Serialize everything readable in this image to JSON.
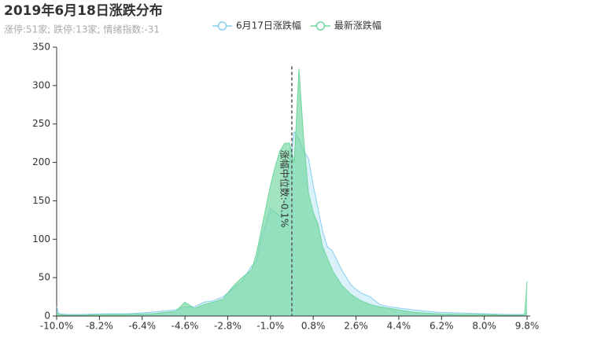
{
  "chart_data": {
    "type": "area",
    "title": "2019年6月18日涨跌分布",
    "subtitle": "涨停:51家; 跌停:13家; 情绪指数:-31",
    "x": [
      -10.0,
      -9.9,
      -9.6,
      -9.0,
      -8.0,
      -7.0,
      -6.0,
      -5.0,
      -4.6,
      -4.2,
      -3.8,
      -3.4,
      -3.0,
      -2.6,
      -2.2,
      -1.8,
      -1.6,
      -1.4,
      -1.2,
      -1.0,
      -0.8,
      -0.6,
      -0.4,
      -0.2,
      0.0,
      0.2,
      0.4,
      0.6,
      0.8,
      1.0,
      1.2,
      1.4,
      1.6,
      2.0,
      2.4,
      2.8,
      3.2,
      3.6,
      4.0,
      5.0,
      6.0,
      7.0,
      8.0,
      9.0,
      9.6,
      9.7,
      9.8
    ],
    "series": [
      {
        "name": "6月17日涨跌幅",
        "color": "#87cfee",
        "values": [
          12,
          3,
          2,
          2,
          3,
          3,
          5,
          8,
          12,
          12,
          18,
          20,
          25,
          35,
          45,
          65,
          70,
          100,
          120,
          140,
          135,
          130,
          150,
          200,
          240,
          230,
          215,
          205,
          170,
          140,
          110,
          90,
          85,
          60,
          40,
          30,
          25,
          15,
          12,
          8,
          5,
          4,
          3,
          2,
          2,
          2,
          5
        ]
      },
      {
        "name": "最新涨跌幅",
        "color": "#6fd69c",
        "values": [
          5,
          2,
          1,
          1,
          2,
          2,
          3,
          6,
          18,
          10,
          15,
          18,
          22,
          38,
          50,
          60,
          80,
          110,
          140,
          170,
          195,
          215,
          225,
          225,
          200,
          322,
          230,
          160,
          135,
          120,
          90,
          75,
          60,
          40,
          28,
          20,
          15,
          12,
          10,
          5,
          3,
          2,
          2,
          1,
          1,
          3,
          45
        ]
      }
    ],
    "markline": {
      "value": -0.1,
      "label": "涨幅中位数:-0.1%"
    },
    "xlim": [
      -10.0,
      9.8
    ],
    "xticks": [
      {
        "value": -10.0,
        "label": "-10.0%"
      },
      {
        "value": -8.2,
        "label": "-8.2%"
      },
      {
        "value": -6.4,
        "label": "-6.4%"
      },
      {
        "value": -4.6,
        "label": "-4.6%"
      },
      {
        "value": -2.8,
        "label": "-2.8%"
      },
      {
        "value": -1.0,
        "label": "-1.0%"
      },
      {
        "value": 0.8,
        "label": "0.8%"
      },
      {
        "value": 2.6,
        "label": "2.6%"
      },
      {
        "value": 4.4,
        "label": "4.4%"
      },
      {
        "value": 6.2,
        "label": "6.2%"
      },
      {
        "value": 8.0,
        "label": "8.0%"
      },
      {
        "value": 9.8,
        "label": "9.8%"
      }
    ],
    "ylim": [
      0,
      350
    ],
    "yticks": [
      0,
      50,
      100,
      150,
      200,
      250,
      300,
      350
    ]
  }
}
